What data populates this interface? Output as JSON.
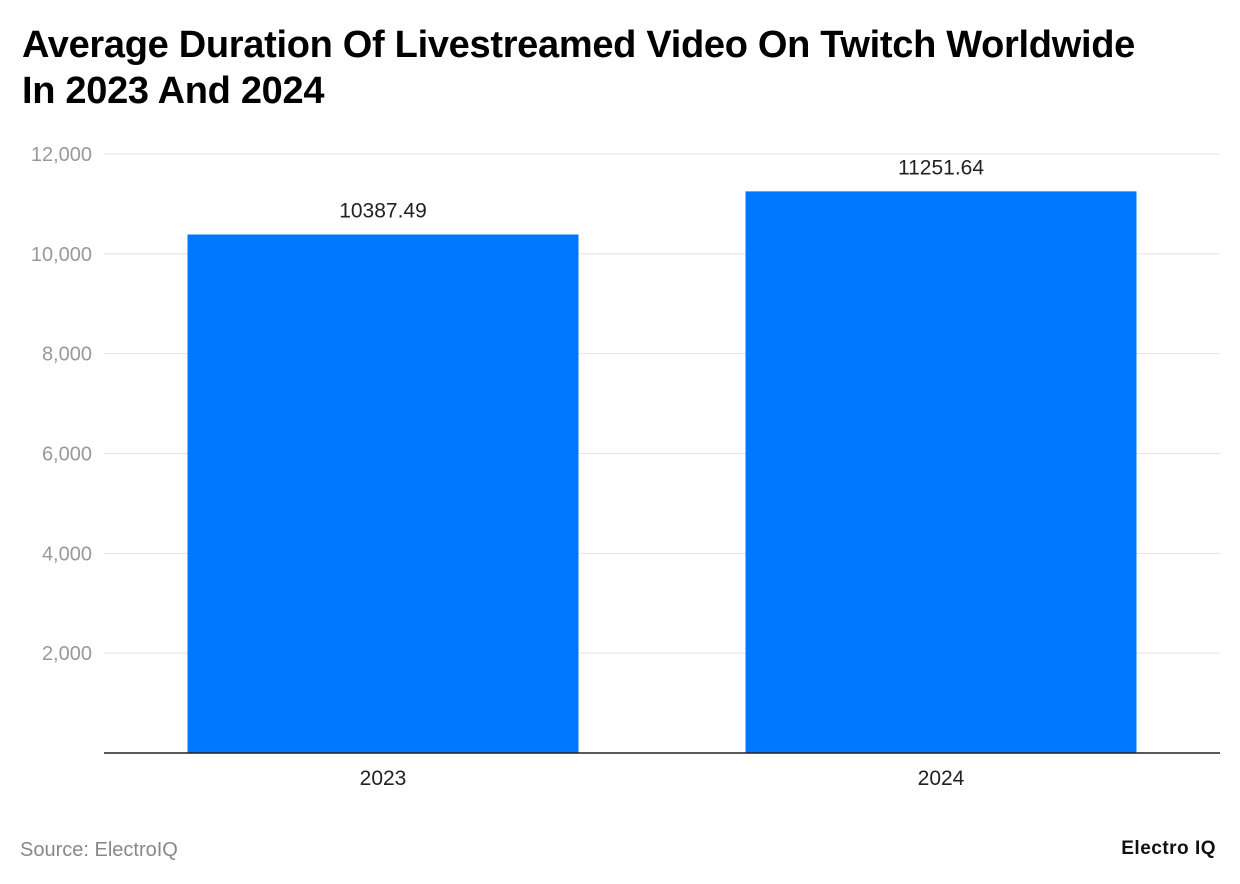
{
  "chart_data": {
    "type": "bar",
    "title": "Average Duration Of Livestreamed Video On Twitch Worldwide In 2023 And 2024",
    "categories": [
      "2023",
      "2024"
    ],
    "values": [
      10387.49,
      11251.64
    ],
    "data_labels": [
      "10387.49",
      "11251.64"
    ],
    "ylim": [
      0,
      12000
    ],
    "yticks": [
      2000,
      4000,
      6000,
      8000,
      10000,
      12000
    ],
    "ytick_labels": [
      "2,000",
      "4,000",
      "6,000",
      "8,000",
      "10,000",
      "12,000"
    ],
    "xlabel": "",
    "ylabel": "",
    "grid": true,
    "bar_color": "#0077FF"
  },
  "footer": {
    "source": "Source: ElectroIQ",
    "logo": "Electro IQ"
  }
}
